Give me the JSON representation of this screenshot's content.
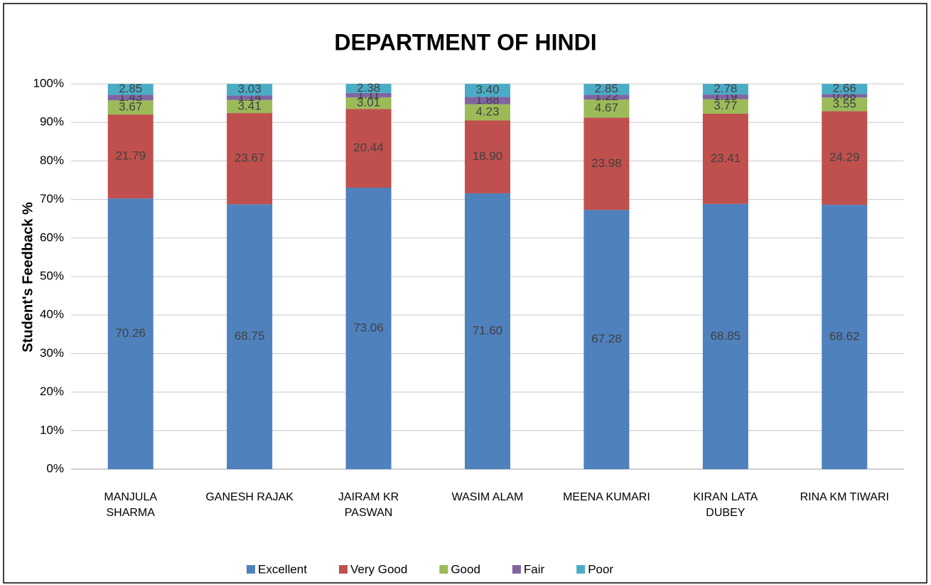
{
  "chart_data": {
    "type": "stacked_bar",
    "title": "DEPARTMENT OF HINDI",
    "y_label": "Student's Feedback %",
    "categories": [
      "MANJULA SHARMA",
      "GANESH RAJAK",
      "JAIRAM KR PASWAN",
      "WASIM ALAM",
      "MEENA KUMARI",
      "KIRAN LATA DUBEY",
      "RINA KM TIWARI"
    ],
    "series": [
      {
        "name": "Excellent",
        "color": "#4f81bd",
        "values": [
          70.26,
          68.75,
          73.06,
          71.6,
          67.28,
          68.85,
          68.62
        ],
        "value_labels": [
          "70.26",
          "68.75",
          "73.06",
          "71.60",
          "67.28",
          "68.85",
          "68.62"
        ]
      },
      {
        "name": "Very Good",
        "color": "#c0504d",
        "values": [
          21.79,
          23.67,
          20.44,
          18.9,
          23.98,
          23.41,
          24.29
        ],
        "value_labels": [
          "21.79",
          "23.67",
          "20.44",
          "18.90",
          "23.98",
          "23.41",
          "24.29"
        ]
      },
      {
        "name": "Good",
        "color": "#9bbb59",
        "values": [
          3.67,
          3.41,
          3.01,
          4.23,
          4.67,
          3.77,
          3.55
        ],
        "value_labels": [
          "3.67",
          "3.41",
          "3.01",
          "4.23",
          "4.67",
          "3.77",
          "3.55"
        ]
      },
      {
        "name": "Fair",
        "color": "#8064a2",
        "values": [
          1.43,
          1.14,
          1.11,
          1.88,
          1.22,
          1.19,
          0.88
        ],
        "value_labels": [
          "1.43",
          "1.14",
          "1.11",
          "1.88",
          "1.22",
          "1.19",
          "0.88"
        ]
      },
      {
        "name": "Poor",
        "color": "#4bacc6",
        "values": [
          2.85,
          3.03,
          2.38,
          3.4,
          2.85,
          2.78,
          2.66
        ],
        "value_labels": [
          "2.85",
          "3.03",
          "2.38",
          "3.40",
          "2.85",
          "2.78",
          "2.66"
        ]
      }
    ],
    "ylim": [
      0,
      100
    ],
    "yticks": [
      {
        "value": 0,
        "label": "0%"
      },
      {
        "value": 10,
        "label": "10%"
      },
      {
        "value": 20,
        "label": "20%"
      },
      {
        "value": 30,
        "label": "30%"
      },
      {
        "value": 40,
        "label": "40%"
      },
      {
        "value": 50,
        "label": "50%"
      },
      {
        "value": 60,
        "label": "60%"
      },
      {
        "value": 70,
        "label": "70%"
      },
      {
        "value": 80,
        "label": "80%"
      },
      {
        "value": 90,
        "label": "90%"
      },
      {
        "value": 100,
        "label": "100%"
      }
    ],
    "grid": true,
    "legend": "bottom"
  }
}
